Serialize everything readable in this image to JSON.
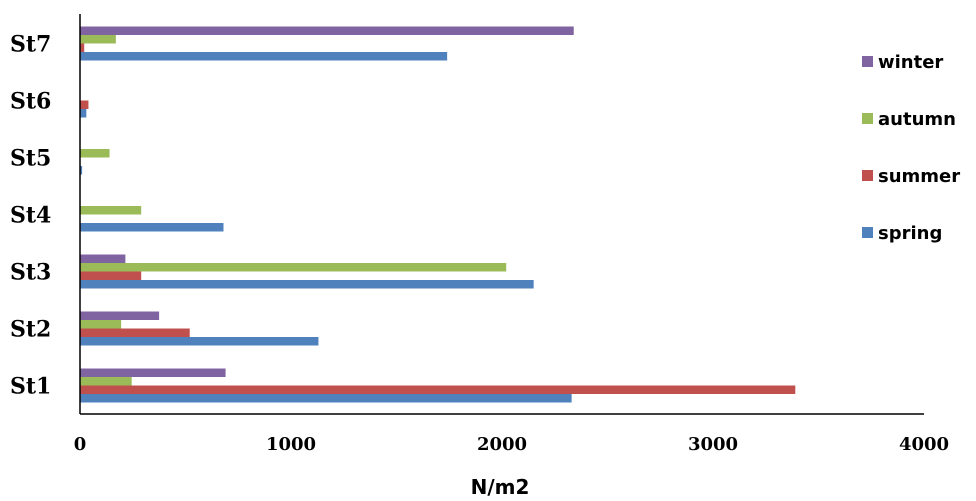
{
  "chart_data": {
    "type": "bar",
    "orientation": "horizontal",
    "categories": [
      "St1",
      "St2",
      "St3",
      "St4",
      "St5",
      "St6",
      "St7"
    ],
    "series": [
      {
        "name": "spring",
        "color": "#4F81BD",
        "values": [
          2330,
          1130,
          2150,
          680,
          10,
          30,
          1740
        ]
      },
      {
        "name": "summer",
        "color": "#C0504D",
        "values": [
          3390,
          520,
          290,
          0,
          0,
          40,
          20
        ]
      },
      {
        "name": "autumn",
        "color": "#9BBB59",
        "values": [
          245,
          195,
          2020,
          290,
          140,
          0,
          170
        ]
      },
      {
        "name": "winter",
        "color": "#8064A2",
        "values": [
          690,
          375,
          215,
          0,
          0,
          0,
          2340
        ]
      }
    ],
    "xlabel": "N/m2",
    "ylabel": "",
    "title": "",
    "xlim": [
      0,
      4000
    ],
    "xticks": [
      0,
      1000,
      2000,
      3000,
      4000
    ],
    "grid": false,
    "legend_position": "right",
    "legend_order": [
      "winter",
      "autumn",
      "summer",
      "spring"
    ]
  }
}
